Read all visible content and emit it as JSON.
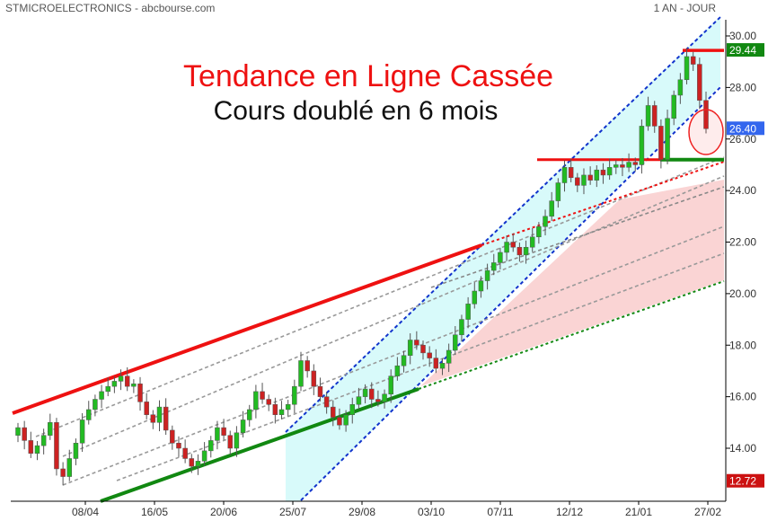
{
  "header": {
    "title": "STMICROELECTRONICS - abcbourse.com",
    "period": "1 AN - JOUR"
  },
  "annotations": {
    "headline": "Tendance en Ligne Cassée",
    "subheadline": "Cours doublé en 6 mois"
  },
  "chart_data": {
    "type": "candlestick",
    "title": "",
    "xlabel": "",
    "ylabel": "",
    "ylim": [
      12.0,
      30.6
    ],
    "yticks": [
      "30.00",
      "28.00",
      "26.00",
      "24.00",
      "22.00",
      "20.00",
      "18.00",
      "16.00",
      "14.00"
    ],
    "xticks": [
      "08/04",
      "16/05",
      "20/06",
      "25/07",
      "29/08",
      "03/10",
      "07/11",
      "12/12",
      "21/01",
      "27/02"
    ],
    "price_tags": [
      {
        "value": 29.44,
        "label": "29.44",
        "color": "#118811"
      },
      {
        "value": 26.4,
        "label": "26.40",
        "color": "#3366ee"
      },
      {
        "value": 12.72,
        "label": "12.72",
        "color": "#cc1111"
      }
    ],
    "series": [
      {
        "name": "",
        "closes": [
          14.8,
          14.3,
          13.8,
          14.1,
          14.5,
          15.0,
          13.2,
          12.9,
          13.6,
          14.2,
          15.1,
          15.5,
          15.9,
          16.2,
          16.4,
          16.6,
          16.8,
          16.4,
          16.5,
          15.8,
          15.3,
          15.0,
          15.6,
          14.7,
          14.2,
          14.0,
          13.6,
          13.3,
          13.5,
          13.9,
          14.3,
          14.8,
          14.5,
          14.0,
          14.6,
          15.1,
          15.5,
          16.2,
          15.9,
          15.7,
          15.3,
          15.5,
          15.7,
          16.4,
          17.4,
          17.0,
          16.4,
          16.0,
          15.6,
          15.2,
          14.9,
          15.3,
          15.7,
          16.0,
          16.3,
          15.9,
          15.8,
          16.1,
          16.8,
          17.2,
          17.6,
          18.2,
          18.0,
          17.7,
          17.5,
          17.1,
          17.3,
          17.8,
          18.4,
          19.0,
          19.6,
          20.1,
          20.5,
          20.9,
          21.2,
          21.6,
          22.0,
          21.8,
          21.5,
          21.8,
          22.2,
          22.6,
          23.0,
          23.6,
          24.3,
          24.9,
          24.5,
          24.2,
          24.6,
          24.4,
          24.8,
          24.6,
          24.9,
          25.0,
          24.9,
          25.1,
          25.0,
          26.5,
          27.3,
          26.5,
          25.2,
          26.8,
          27.7,
          28.3,
          29.2,
          28.9,
          27.5,
          26.4
        ]
      }
    ],
    "support_levels": [
      29.44,
      25.2
    ],
    "grid": false,
    "legend": "none"
  }
}
